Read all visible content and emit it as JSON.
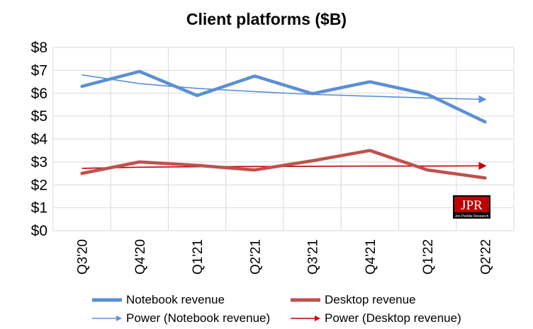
{
  "chart_data": {
    "type": "line",
    "title": "Client platforms ($B)",
    "xlabel": "",
    "ylabel": "",
    "categories": [
      "Q3'20",
      "Q4'20",
      "Q1'21",
      "Q2'21",
      "Q3'21",
      "Q4'21",
      "Q1'22",
      "Q2'22"
    ],
    "ylim": [
      0,
      8
    ],
    "yticks": [
      "$0",
      "$1",
      "$2",
      "$3",
      "$4",
      "$5",
      "$6",
      "$7",
      "$8"
    ],
    "grid": true,
    "legend_position": "bottom",
    "series": [
      {
        "name": "Notebook revenue",
        "color": "#5b8fd6",
        "values": [
          6.3,
          6.95,
          5.9,
          6.75,
          5.98,
          6.5,
          5.95,
          4.75
        ]
      },
      {
        "name": "Desktop revenue",
        "color": "#c0504d",
        "values": [
          2.5,
          3.0,
          2.85,
          2.65,
          3.05,
          3.5,
          2.65,
          2.3
        ]
      }
    ],
    "trendlines": [
      {
        "name": "Power (Notebook revenue)",
        "color": "#5b8fd6",
        "values": [
          6.8,
          6.42,
          6.21,
          6.07,
          5.95,
          5.87,
          5.79,
          5.73
        ]
      },
      {
        "name": "Power (Desktop revenue)",
        "color": "#c00000",
        "values": [
          2.72,
          2.77,
          2.79,
          2.8,
          2.81,
          2.82,
          2.82,
          2.83
        ]
      }
    ]
  },
  "logo": {
    "text": "JPR",
    "subtext": "Jon Peddie Research"
  }
}
